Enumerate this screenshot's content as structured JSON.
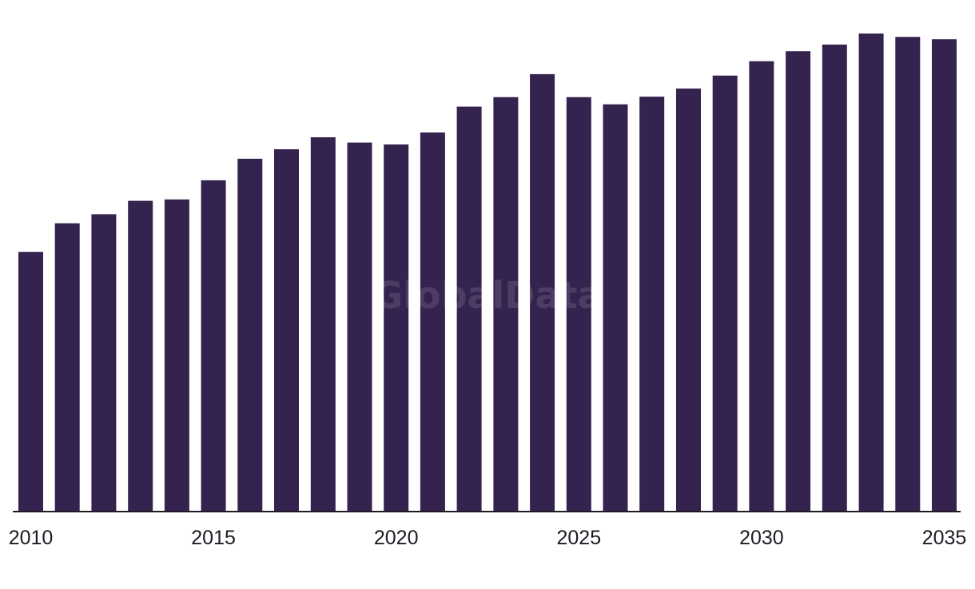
{
  "chart_data": {
    "type": "bar",
    "categories": [
      "2010",
      "2011",
      "2012",
      "2013",
      "2014",
      "2015",
      "2016",
      "2017",
      "2018",
      "2019",
      "2020",
      "2021",
      "2022",
      "2023",
      "2024",
      "2025",
      "2026",
      "2027",
      "2028",
      "2029",
      "2030",
      "2031",
      "2032",
      "2033",
      "2034",
      "2035"
    ],
    "values": [
      54.3,
      60.3,
      62.2,
      65.0,
      65.3,
      69.3,
      73.8,
      75.8,
      78.3,
      77.2,
      76.8,
      79.3,
      84.7,
      86.7,
      91.5,
      86.7,
      85.2,
      86.8,
      88.5,
      91.2,
      94.2,
      96.3,
      97.7,
      100.0,
      99.3,
      98.8
    ],
    "x_tick_labels": [
      "2010",
      "2015",
      "2020",
      "2025",
      "2030",
      "2035"
    ],
    "ylim": [
      0,
      100
    ],
    "grid": false,
    "bar_color": "#35234f",
    "axis_color": "#1f1b24"
  },
  "watermark": {
    "text": "GlobalData"
  }
}
